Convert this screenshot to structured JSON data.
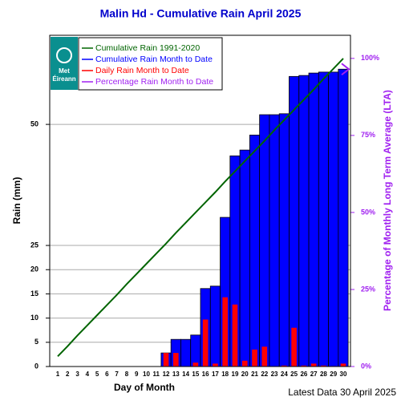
{
  "chart_data": {
    "type": "bar",
    "title": "Malin Hd - Cumulative Rain April   2025",
    "xlabel": "Day of Month",
    "ylabel": "Rain (mm)",
    "y2label": "Percentage  of Monthly Long Term Average (LTA)",
    "footer": "Latest Data 30 April 2025",
    "logo": [
      "Met",
      "Éireann"
    ],
    "categories": [
      "1",
      "2",
      "3",
      "4",
      "5",
      "6",
      "7",
      "8",
      "9",
      "10",
      "11",
      "12",
      "13",
      "14",
      "15",
      "16",
      "17",
      "18",
      "19",
      "20",
      "21",
      "22",
      "23",
      "24",
      "25",
      "26",
      "27",
      "28",
      "29",
      "30"
    ],
    "ylim": [
      0,
      68.4
    ],
    "yticks": [
      0,
      5,
      10,
      15,
      20,
      25,
      50
    ],
    "y2lim": [
      0,
      107.5
    ],
    "y2ticks": [
      {
        "value": 0,
        "label": "0%"
      },
      {
        "value": 25,
        "label": "25%"
      },
      {
        "value": 50,
        "label": "50%"
      },
      {
        "value": 75,
        "label": "75%"
      },
      {
        "value": 100,
        "label": "100%"
      }
    ],
    "grid": true,
    "series": [
      {
        "name": "Cumulative Rain 1991-2020",
        "color": "#006400",
        "kind": "line",
        "values": [
          2.1,
          4.2,
          6.4,
          8.5,
          10.6,
          12.7,
          14.8,
          17.0,
          19.1,
          21.2,
          23.3,
          25.4,
          27.6,
          29.7,
          31.8,
          33.9,
          36.0,
          38.2,
          40.3,
          42.4,
          44.5,
          46.6,
          48.8,
          50.9,
          53.0,
          55.1,
          57.2,
          59.4,
          61.5,
          63.6
        ]
      },
      {
        "name": "Cumulative Rain Month to Date",
        "color": "#0000ff",
        "kind": "bar",
        "values": [
          0,
          0,
          0,
          0,
          0,
          0,
          0,
          0,
          0,
          0,
          0,
          2.8,
          5.6,
          5.6,
          6.5,
          16.1,
          16.6,
          30.8,
          43.5,
          44.7,
          47.8,
          52.0,
          52.0,
          52.2,
          59.9,
          60.1,
          60.6,
          60.8,
          60.8,
          61.4
        ]
      },
      {
        "name": "Daily Rain Month to Date",
        "color": "#ff0000",
        "kind": "narrow-bar",
        "values": [
          0,
          0,
          0,
          0,
          0,
          0,
          0,
          0,
          0,
          0,
          0,
          2.8,
          2.8,
          0,
          0.8,
          9.7,
          0.6,
          14.3,
          12.8,
          1.2,
          3.5,
          4.1,
          0,
          0.2,
          8.0,
          0.2,
          0.6,
          0.2,
          0.1,
          0.6
        ]
      },
      {
        "name": "Percentage Rain Month to Date",
        "color": "#a020f0",
        "kind": "marker",
        "axis": "y2",
        "values": [
          null,
          null,
          null,
          null,
          null,
          null,
          null,
          null,
          null,
          null,
          null,
          null,
          null,
          null,
          null,
          null,
          null,
          null,
          null,
          null,
          null,
          null,
          null,
          null,
          null,
          null,
          null,
          null,
          null,
          96.5
        ]
      }
    ]
  }
}
